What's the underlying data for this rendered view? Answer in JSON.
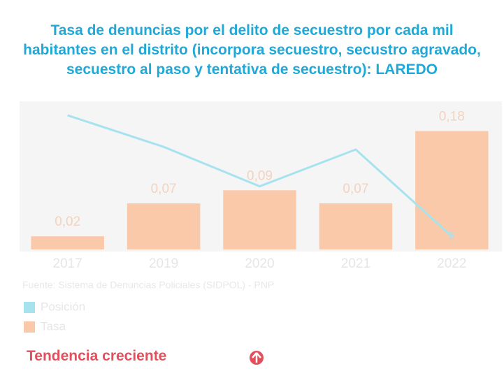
{
  "chart_data": {
    "type": "bar",
    "title": "Tasa de denuncias por el delito de secuestro por cada mil habitantes en el distrito (incorpora secuestro, secustro agravado, secuestro al paso y tentativa de secuestro): LAREDO",
    "categories": [
      "2017",
      "2019",
      "2020",
      "2021",
      "2022"
    ],
    "series": [
      {
        "name": "Posición",
        "type": "line",
        "axis": "y2",
        "color": "#a6e3ee",
        "values": [
          51,
          39,
          24,
          38,
          5
        ]
      },
      {
        "name": "Tasa",
        "type": "bar",
        "color": "#f9c9aa",
        "values": [
          0.02,
          0.07,
          0.09,
          0.07,
          0.18
        ],
        "value_labels": [
          "0,02",
          "0,07",
          "0,09",
          "0,07",
          "0,18"
        ]
      }
    ],
    "ylim": [
      0,
      0.22
    ],
    "y2lim": [
      0,
      55
    ],
    "source": "Fuente: Sistema de Denuncias Policiales (SIDPOL) - PNP",
    "trend": "Tendencia creciente"
  }
}
